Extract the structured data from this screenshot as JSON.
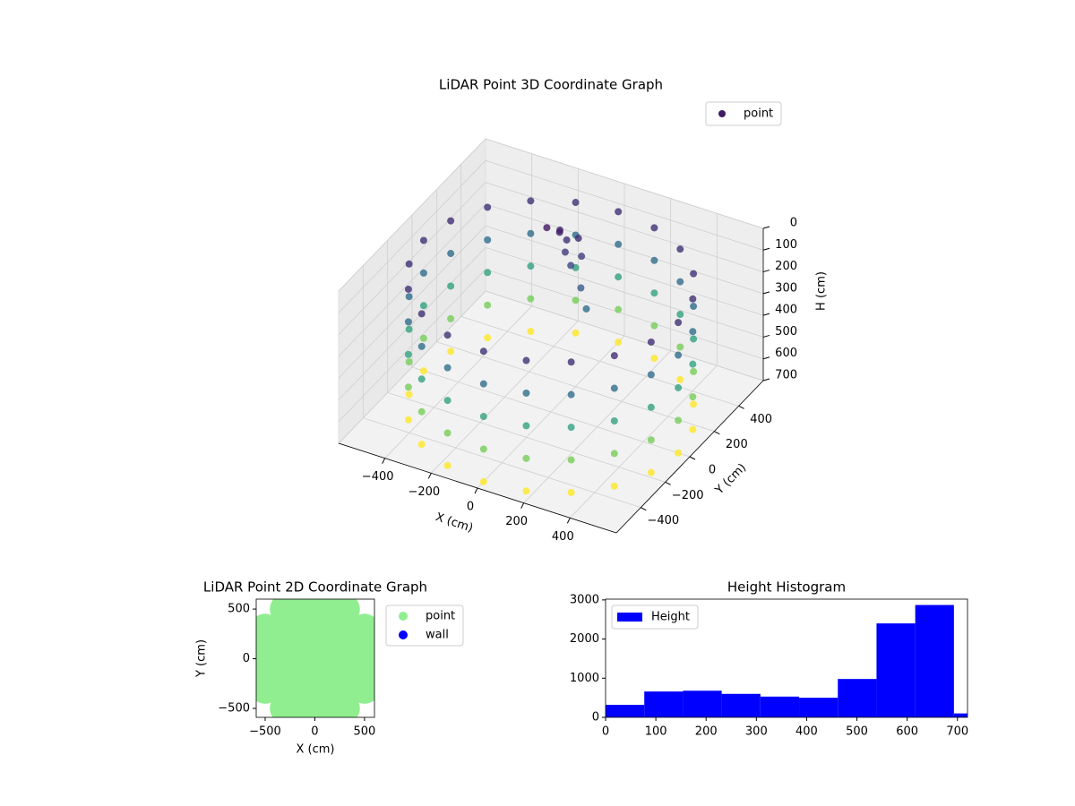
{
  "chart_data": [
    {
      "type": "scatter3d",
      "title": "LiDAR Point 3D Coordinate Graph",
      "colormap": "viridis",
      "legend": "upper right",
      "xlabel": "X (cm)",
      "ylabel": "Y (cm)",
      "zlabel": "H (cm)",
      "xlim": [
        -600,
        600
      ],
      "ylim": [
        -600,
        600
      ],
      "zlim": [
        700,
        0
      ],
      "xticks": [
        {
          "value": -400,
          "label": "−400"
        },
        {
          "value": -200,
          "label": "−200"
        },
        0,
        200,
        400
      ],
      "yticks": [
        {
          "value": -400,
          "label": "−400"
        },
        {
          "value": -200,
          "label": "−200"
        },
        0,
        200,
        400
      ],
      "zticks": [
        0,
        100,
        200,
        300,
        400,
        500,
        600,
        700
      ],
      "series": [
        {
          "name": "point",
          "x": [
            550,
            523,
            445,
            323,
            170,
            0,
            -170,
            -323,
            -445,
            -523,
            -550,
            -523,
            -445,
            -323,
            -170,
            0,
            170,
            323,
            445,
            523,
            550,
            523,
            445,
            323,
            170,
            0,
            -170,
            -323,
            -445,
            -523,
            -550,
            -523,
            -445,
            -323,
            -170,
            0,
            170,
            323,
            445,
            523,
            550,
            523,
            445,
            323,
            170,
            0,
            -170,
            -323,
            -445,
            -523,
            -550,
            -523,
            -445,
            -323,
            -170,
            0,
            170,
            323,
            445,
            523,
            550,
            523,
            445,
            323,
            170,
            0,
            -170,
            -323,
            -445,
            -523,
            -550,
            -523,
            -445,
            -323,
            -170,
            0,
            170,
            323,
            445,
            523,
            550,
            523,
            445,
            323,
            170,
            0,
            -170,
            -323,
            -445,
            -523,
            -550,
            -523,
            -445,
            -323,
            -170,
            0,
            170,
            323,
            445,
            523,
            -150,
            -120,
            -100,
            -80,
            -60,
            -40,
            -20,
            0,
            50,
            100
          ],
          "y": [
            0,
            170,
            323,
            445,
            523,
            550,
            523,
            445,
            323,
            170,
            0,
            -170,
            -323,
            -445,
            -523,
            -550,
            -523,
            -445,
            -323,
            -170,
            0,
            170,
            323,
            445,
            523,
            550,
            523,
            445,
            323,
            170,
            0,
            -170,
            -323,
            -445,
            -523,
            -550,
            -523,
            -445,
            -323,
            -170,
            0,
            170,
            323,
            445,
            523,
            550,
            523,
            445,
            323,
            170,
            0,
            -170,
            -323,
            -445,
            -523,
            -550,
            -523,
            -445,
            -323,
            -170,
            0,
            170,
            323,
            445,
            523,
            550,
            523,
            445,
            323,
            170,
            0,
            -170,
            -323,
            -445,
            -523,
            -550,
            -523,
            -445,
            -323,
            -170,
            0,
            170,
            323,
            445,
            523,
            550,
            523,
            445,
            323,
            170,
            0,
            -170,
            -323,
            -445,
            -523,
            -550,
            -523,
            -445,
            -323,
            -170,
            250,
            300,
            260,
            280,
            230,
            300,
            200,
            250,
            150,
            100
          ],
          "z": [
            100,
            100,
            100,
            100,
            100,
            100,
            100,
            100,
            100,
            100,
            100,
            100,
            100,
            100,
            100,
            100,
            100,
            100,
            100,
            100,
            250,
            250,
            250,
            250,
            250,
            250,
            250,
            250,
            250,
            250,
            250,
            250,
            250,
            250,
            250,
            250,
            250,
            250,
            250,
            250,
            400,
            400,
            400,
            400,
            400,
            400,
            400,
            400,
            400,
            400,
            400,
            400,
            400,
            400,
            400,
            400,
            400,
            400,
            400,
            400,
            550,
            550,
            550,
            550,
            550,
            550,
            550,
            550,
            550,
            550,
            550,
            550,
            550,
            550,
            550,
            550,
            550,
            550,
            550,
            550,
            700,
            700,
            700,
            700,
            700,
            700,
            700,
            700,
            700,
            700,
            700,
            700,
            700,
            700,
            700,
            700,
            700,
            700,
            700,
            700,
            50,
            80,
            60,
            100,
            120,
            90,
            150,
            130,
            200,
            250
          ]
        }
      ]
    },
    {
      "type": "scatter",
      "title": "LiDAR Point 2D Coordinate Graph",
      "xlabel": "X (cm)",
      "ylabel": "Y (cm)",
      "legend": "outside right",
      "xlim": [
        -590,
        600
      ],
      "ylim": [
        -590,
        600
      ],
      "xticks": [
        {
          "value": -500,
          "label": "−500"
        },
        0,
        500
      ],
      "yticks": [
        {
          "value": -500,
          "label": "−500"
        },
        0,
        500
      ],
      "series": [
        {
          "name": "point",
          "color": "#90ee90",
          "x": [
            -300,
            -100,
            100,
            300,
            -500,
            -300,
            -100,
            100,
            300,
            500,
            -500,
            -300,
            -100,
            100,
            300,
            500,
            -500,
            -300,
            -100,
            100,
            300,
            500,
            -500,
            -300,
            -100,
            100,
            300,
            500,
            -300,
            -100,
            100,
            300
          ],
          "y": [
            -500,
            -500,
            -500,
            -500,
            -300,
            -300,
            -300,
            -300,
            -300,
            -300,
            -100,
            -100,
            -100,
            -100,
            -100,
            -100,
            100,
            100,
            100,
            100,
            100,
            100,
            300,
            300,
            300,
            300,
            300,
            300,
            500,
            500,
            500,
            500
          ]
        },
        {
          "name": "wall",
          "color": "#0000ff",
          "x": [],
          "y": []
        }
      ]
    },
    {
      "type": "histogram",
      "title": "Height Histogram",
      "legend": "upper left",
      "xlim": [
        0,
        720
      ],
      "ylim": [
        0,
        3020
      ],
      "xticks": [
        0,
        100,
        200,
        300,
        400,
        500,
        600,
        700
      ],
      "yticks": [
        0,
        1000,
        2000,
        3000
      ],
      "bins": [
        0,
        77,
        154,
        231,
        308,
        385,
        462,
        539,
        616,
        693,
        720
      ],
      "series": [
        {
          "name": "Height",
          "color": "#0000ff",
          "values": [
            320,
            660,
            680,
            600,
            530,
            500,
            980,
            2400,
            2870,
            100
          ]
        }
      ]
    }
  ]
}
